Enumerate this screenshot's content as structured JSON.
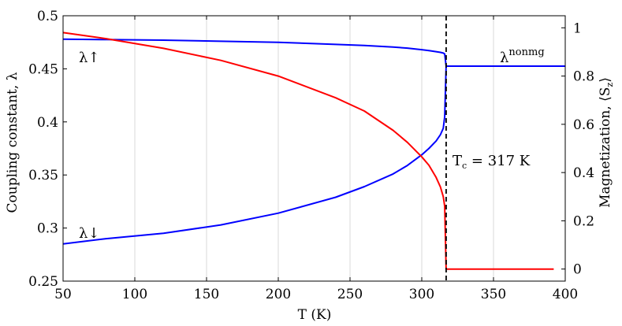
{
  "chart_data": {
    "type": "line",
    "xlabel": "T (K)",
    "ylabel_left": "Coupling constant,  λ",
    "ylabel_right": "Magnetization, ⟨S",
    "ylabel_right_sub": "z",
    "ylabel_right_end": "⟩",
    "xlim": [
      50,
      400
    ],
    "ylim_left": [
      0.25,
      0.5
    ],
    "ylim_right": [
      -0.05,
      1.05
    ],
    "xticks": [
      50,
      100,
      150,
      200,
      250,
      300,
      350,
      400
    ],
    "xtick_labels": [
      "50",
      "100",
      "150",
      "200",
      "250",
      "300",
      "350",
      "400"
    ],
    "yticks_left": [
      0.25,
      0.3,
      0.35,
      0.4,
      0.45,
      0.5
    ],
    "ytick_labels_left": [
      "0.25",
      "0.3",
      "0.35",
      "0.4",
      "0.45",
      "0.5"
    ],
    "yticks_right": [
      0,
      0.2,
      0.4,
      0.6,
      0.8,
      1.0
    ],
    "ytick_labels_right": [
      "0",
      "0.2",
      "0.4",
      "0.6",
      "0.8",
      "1"
    ],
    "grid": "vertical",
    "colors": {
      "coupling": "#0000ff",
      "magnetization": "#ff0000",
      "vline": "#000000"
    },
    "series": [
      {
        "axis": "left",
        "color": "#0000ff",
        "x": [
          50,
          80,
          120,
          160,
          200,
          240,
          260,
          280,
          290,
          300,
          305,
          310,
          313,
          315,
          316,
          317,
          317.5,
          320,
          350,
          400
        ],
        "y": [
          0.478,
          0.4775,
          0.477,
          0.476,
          0.475,
          0.473,
          0.472,
          0.4705,
          0.4695,
          0.468,
          0.4672,
          0.4662,
          0.4655,
          0.4648,
          0.464,
          0.4525,
          0.4525,
          0.4525,
          0.4525,
          0.4525
        ]
      },
      {
        "axis": "left",
        "color": "#0000ff",
        "x": [
          50,
          80,
          120,
          160,
          200,
          240,
          260,
          280,
          290,
          300,
          305,
          310,
          313,
          315,
          316,
          317
        ],
        "y": [
          0.285,
          0.29,
          0.295,
          0.303,
          0.314,
          0.329,
          0.339,
          0.351,
          0.359,
          0.369,
          0.375,
          0.382,
          0.388,
          0.394,
          0.405,
          0.4525
        ]
      },
      {
        "axis": "right",
        "color": "#ff0000",
        "x": [
          50,
          80,
          120,
          160,
          200,
          240,
          260,
          280,
          290,
          300,
          305,
          310,
          313,
          315,
          316,
          317,
          320,
          350,
          392
        ],
        "y": [
          0.98,
          0.955,
          0.915,
          0.865,
          0.8,
          0.71,
          0.655,
          0.575,
          0.525,
          0.465,
          0.43,
          0.38,
          0.34,
          0.3,
          0.26,
          0.0,
          0.0,
          0.0,
          0.0
        ]
      }
    ],
    "vline": {
      "x": 317,
      "style": "dashed"
    },
    "annotations": {
      "lambda_up": "λ↑",
      "lambda_down": "λ↓",
      "lambda_nonmag_base": "λ",
      "lambda_nonmag_sup": "nonmg",
      "tc_T": "T",
      "tc_sub": "c",
      "tc_rest": " = 317 K"
    }
  }
}
